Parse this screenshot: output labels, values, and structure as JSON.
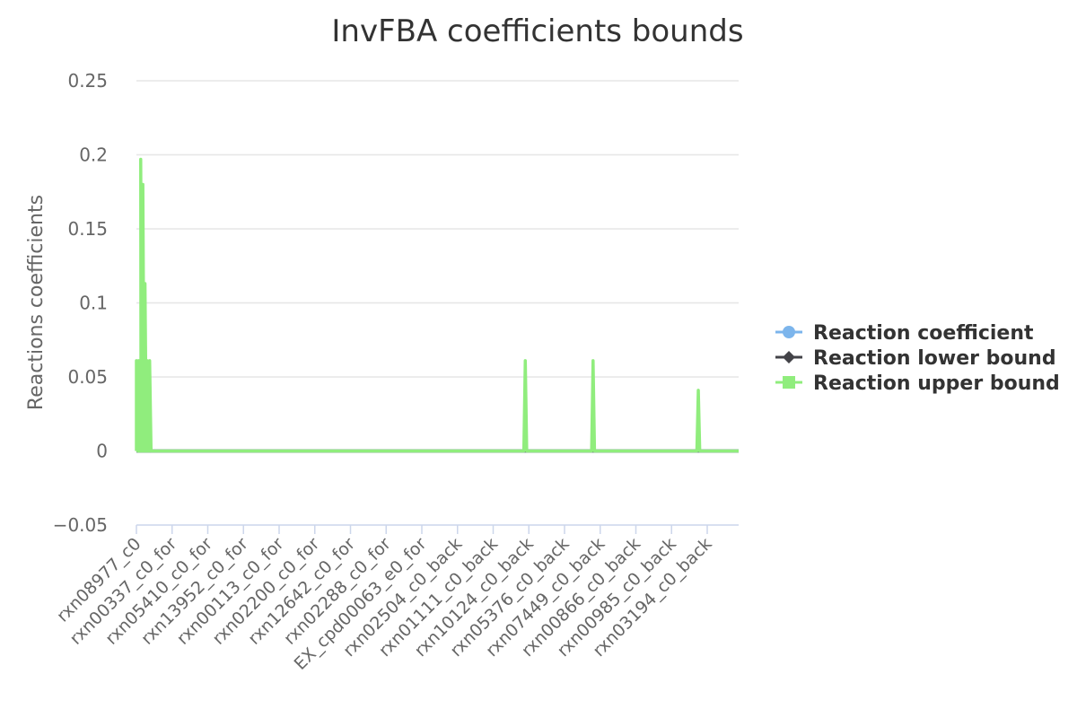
{
  "chart_data": {
    "type": "line",
    "title": "InvFBA coefficients bounds",
    "ylabel": "Reactions coefficients",
    "xlabel": "",
    "ylim": [
      -0.05,
      0.25
    ],
    "yticks": [
      -0.05,
      0,
      0.05,
      0.1,
      0.15,
      0.2,
      0.25
    ],
    "ytick_labels": [
      "−0.05",
      "0",
      "0.05",
      "0.1",
      "0.15",
      "0.2",
      "0.25"
    ],
    "grid": true,
    "legend_position": "right",
    "x_tick_labels": [
      "rxn08977_c0",
      "rxn00337_c0_for",
      "rxn05410_c0_for",
      "rxn13952_c0_for",
      "rxn00113_c0_for",
      "rxn02200_c0_for",
      "rxn12642_c0_for",
      "rxn02288_c0_for",
      "EX_cpd00063_e0_for",
      "rxn02504_c0_back",
      "rxn01111_c0_back",
      "rxn10124_c0_back",
      "rxn05376_c0_back",
      "rxn07449_c0_back",
      "rxn00866_c0_back",
      "rxn00985_c0_back",
      "rxn03194_c0_back"
    ],
    "x_tick_spacing": 10,
    "x_total_points": 170,
    "series": [
      {
        "name": "Reaction coefficient",
        "color": "#7cb5ec",
        "marker": "circle",
        "baseline": 0,
        "points": []
      },
      {
        "name": "Reaction lower bound",
        "color": "#434348",
        "marker": "diamond",
        "baseline": 0,
        "points": []
      },
      {
        "name": "Reaction upper bound",
        "color": "#90ed7d",
        "marker": "square",
        "baseline": 0,
        "points": [
          [
            0,
            0.061
          ],
          [
            0.3,
            0.02
          ],
          [
            0.6,
            0.061
          ],
          [
            0.9,
            0.01
          ],
          [
            1.2,
            0.197
          ],
          [
            1.5,
            0.04
          ],
          [
            1.8,
            0.18
          ],
          [
            2.1,
            0.06
          ],
          [
            2.4,
            0.113
          ],
          [
            2.7,
            0.03
          ],
          [
            3.0,
            0.061
          ],
          [
            3.3,
            0.02
          ],
          [
            3.7,
            0.061
          ],
          [
            109,
            0.061
          ],
          [
            128,
            0.061
          ],
          [
            157.5,
            0.041
          ]
        ]
      }
    ]
  }
}
